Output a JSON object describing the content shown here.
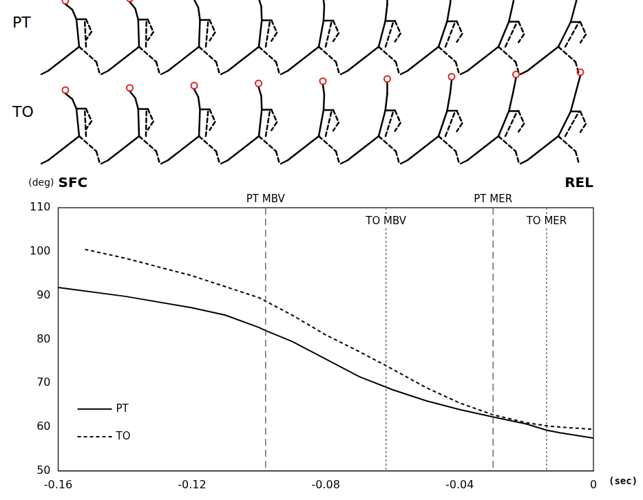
{
  "figure_rows": [
    "PT",
    "TO"
  ],
  "chart_data": {
    "type": "line",
    "x_label": "(sec)",
    "y_label": "(deg)",
    "corner_labels": [
      "SFC",
      "REL"
    ],
    "series": [
      {
        "name": "PT",
        "color": "#000000",
        "line_style": "solid",
        "x": [
          -0.16,
          -0.14,
          -0.12,
          -0.11,
          -0.1,
          -0.098,
          -0.09,
          -0.08,
          -0.07,
          -0.06,
          -0.05,
          -0.04,
          -0.03,
          -0.02,
          -0.014,
          -0.01,
          0
        ],
        "values": [
          91.8,
          89.8,
          87.2,
          85.5,
          82.7,
          82,
          79.5,
          75.5,
          71.5,
          68.5,
          66,
          64,
          62.3,
          60.7,
          59.3,
          58.7,
          57.5
        ]
      },
      {
        "name": "TO",
        "color": "#000000",
        "line_style": "dashed",
        "x": [
          -0.152,
          -0.14,
          -0.12,
          -0.1,
          -0.09,
          -0.08,
          -0.07,
          -0.062,
          -0.05,
          -0.04,
          -0.03,
          -0.02,
          -0.014,
          -0.01,
          0
        ],
        "values": [
          100.5,
          98.5,
          94.5,
          89.5,
          85.5,
          81,
          77.2,
          74,
          69,
          65.5,
          62.8,
          61,
          60.3,
          60,
          59.5
        ]
      }
    ],
    "annotations": [
      {
        "x": -0.098,
        "label": "PT MBV",
        "line_style": "dashed"
      },
      {
        "x": -0.062,
        "label": "TO MBV",
        "line_style": "dotted"
      },
      {
        "x": -0.03,
        "label": "PT MER",
        "line_style": "dashed"
      },
      {
        "x": -0.014,
        "label": "TO MER",
        "line_style": "dotted"
      }
    ],
    "xlim": [
      -0.16,
      0
    ],
    "xticks": [
      -0.16,
      -0.12,
      -0.08,
      -0.04,
      0
    ],
    "ylim": [
      50,
      110
    ],
    "yticks": [
      50,
      60,
      70,
      80,
      90,
      100,
      110
    ],
    "grid": false,
    "legend": "lower left"
  }
}
